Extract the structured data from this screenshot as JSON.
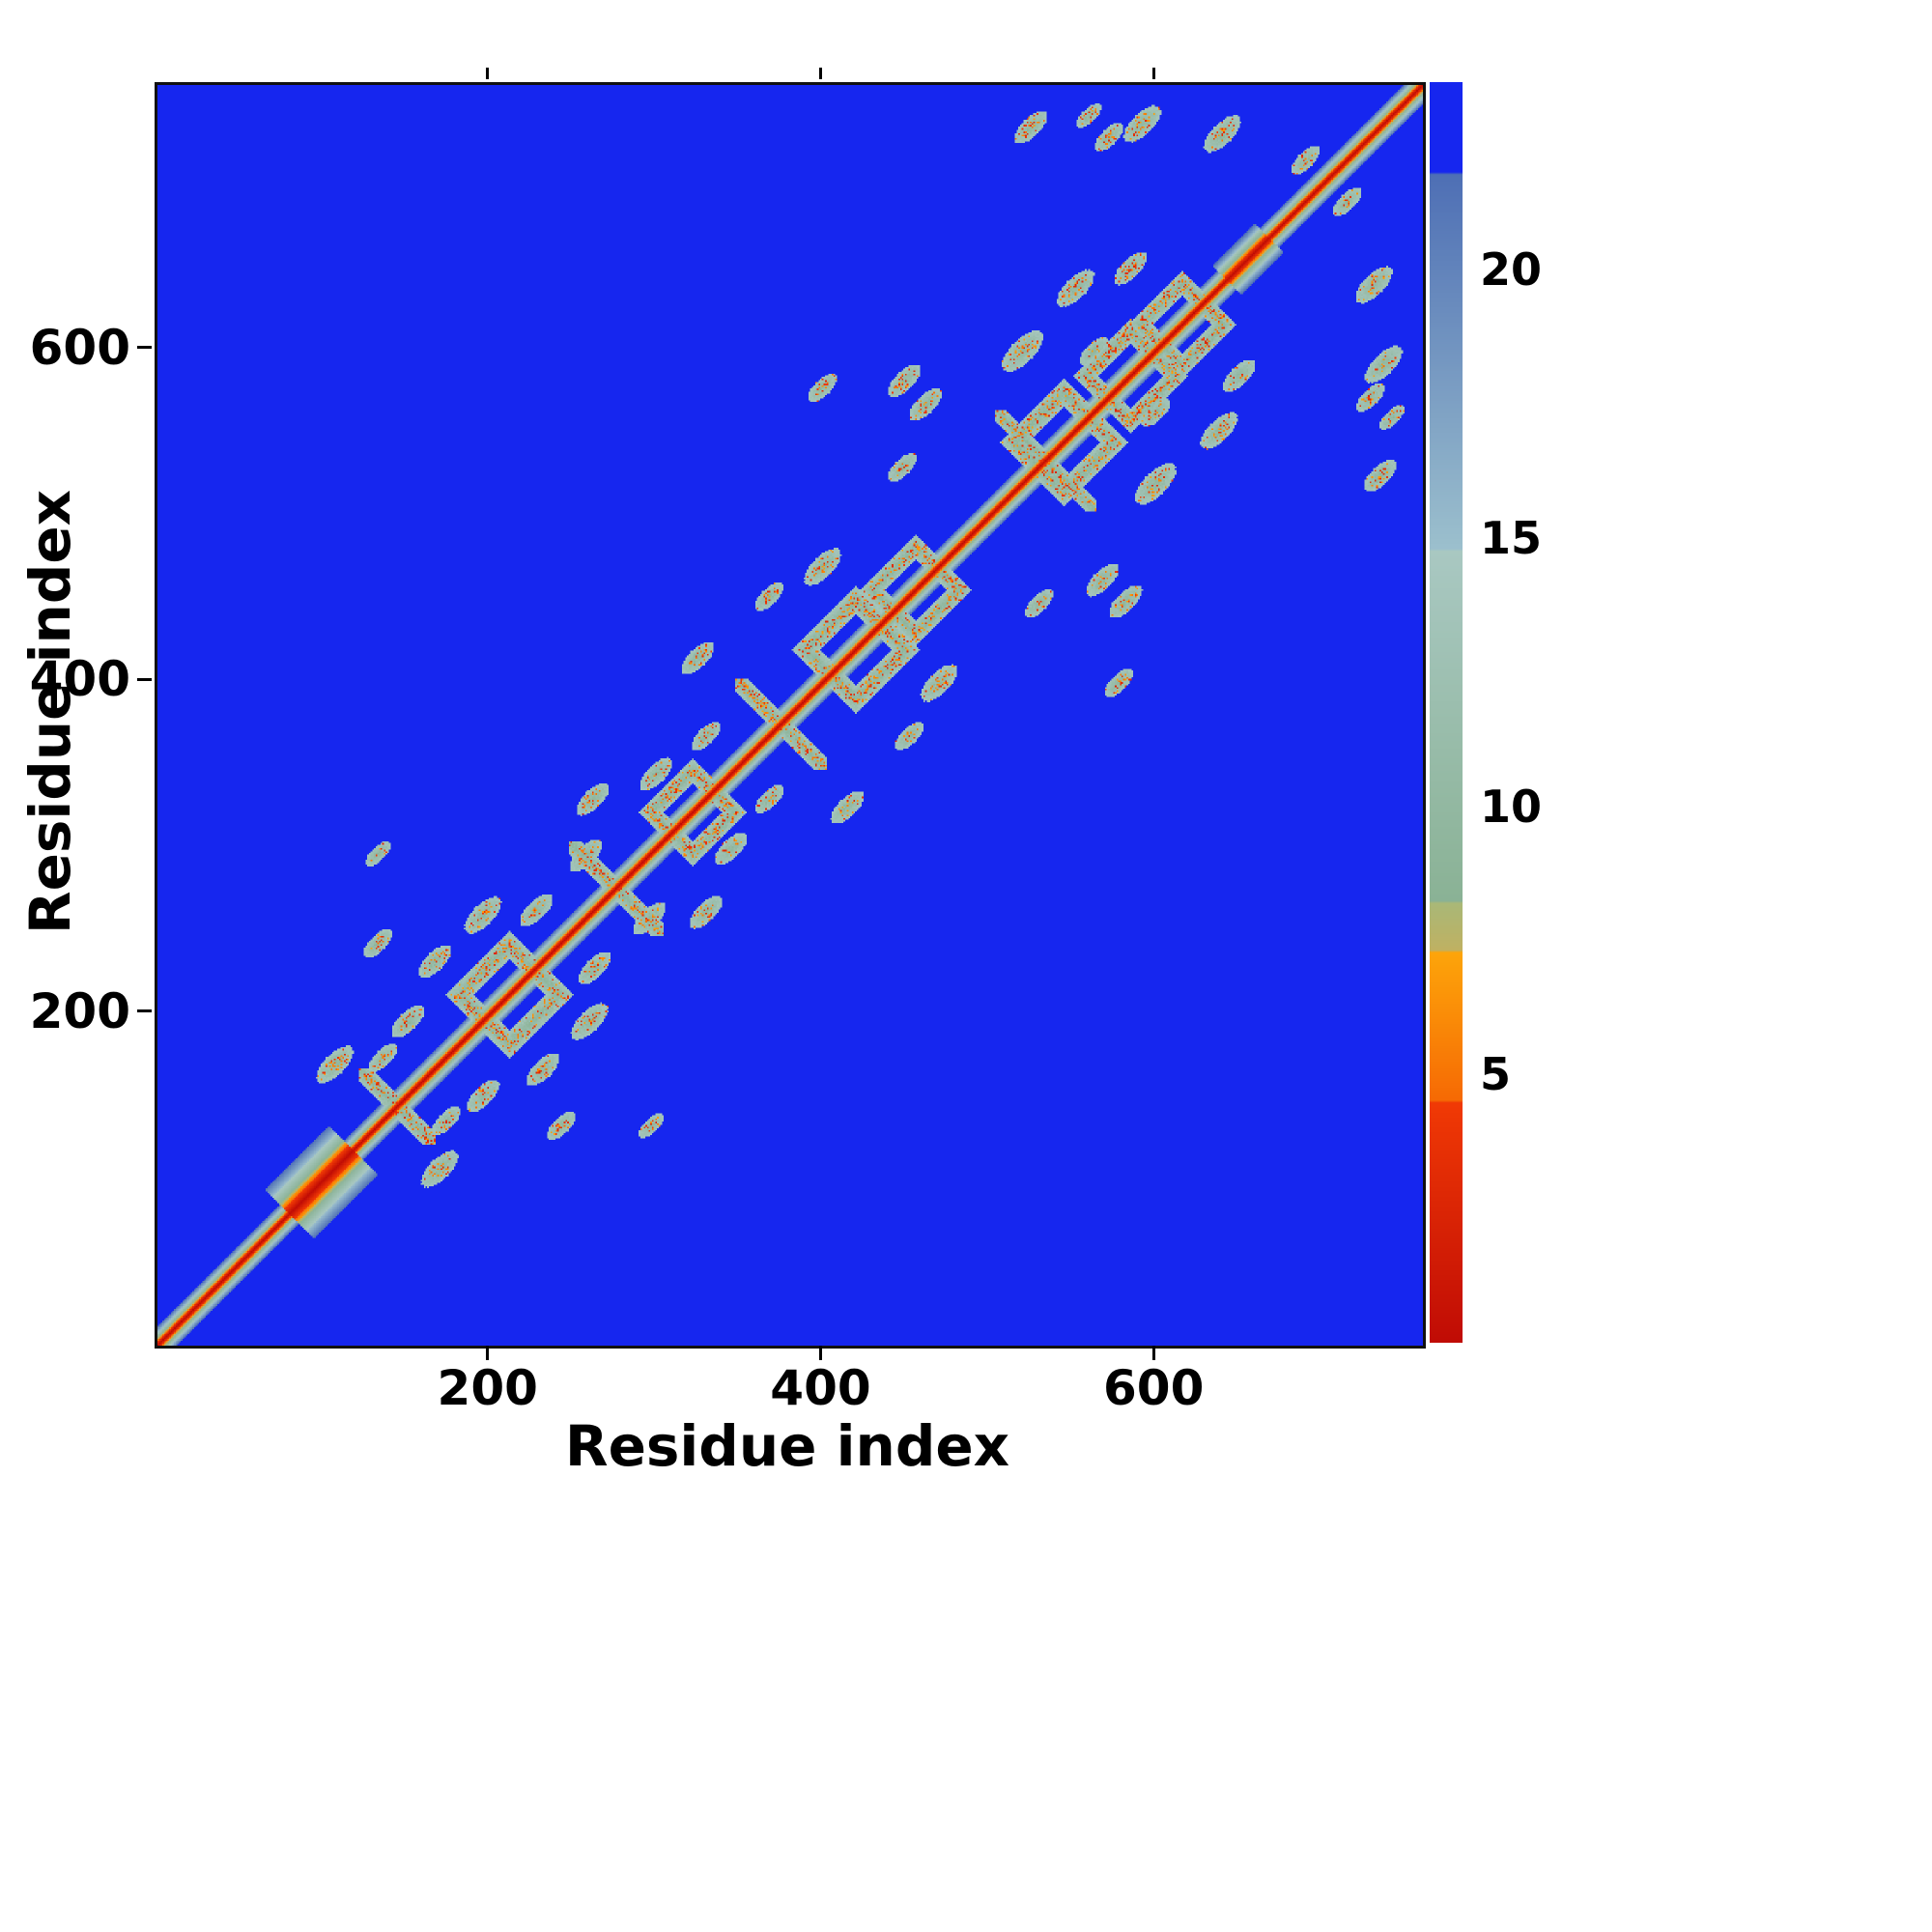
{
  "figure": {
    "xlabel": "Residue index",
    "ylabel": "Residue index"
  },
  "chart_data": {
    "type": "heatmap",
    "title": "",
    "xlabel": "Residue index",
    "ylabel": "Residue index",
    "x_range": [
      1,
      760
    ],
    "y_range": [
      1,
      760
    ],
    "x_ticks": [
      "200",
      "400",
      "600"
    ],
    "y_ticks": [
      "200",
      "400",
      "600"
    ],
    "x_tick_values": [
      200,
      400,
      600
    ],
    "y_tick_values": [
      200,
      400,
      600
    ],
    "grid": false,
    "legend": "colorbar-right",
    "colorbar": {
      "vmin": 0,
      "vmax": 23.5,
      "tick_values": [
        5,
        10,
        15,
        20
      ],
      "tick_labels": [
        "5",
        "10",
        "15",
        "20"
      ]
    },
    "background_color": "#1626ef",
    "colormap_stops": [
      {
        "upto": 4.5,
        "from": "#c00c05",
        "to": "#f13a05"
      },
      {
        "upto": 7.3,
        "from": "#f66a04",
        "to": "#fda60a"
      },
      {
        "upto": 8.2,
        "from": "#c0b162",
        "to": "#a9b878"
      },
      {
        "upto": 14.8,
        "from": "#8ab295",
        "to": "#a9c8c2"
      },
      {
        "upto": 21.8,
        "from": "#9cc0cd",
        "to": "#4e6fb5"
      },
      {
        "upto": 99,
        "from": "#1626ef",
        "to": "#1626ef"
      }
    ],
    "n": 760,
    "diag_slope": 1.9,
    "features": {
      "diag_wide": [
        {
          "a": 80,
          "b": 118,
          "scale": 2.6
        },
        {
          "a": 643,
          "b": 668,
          "scale": 1.5
        }
      ],
      "anti": [
        {
          "a": 126,
          "b": 163,
          "w": 8
        },
        {
          "a": 252,
          "b": 300,
          "w": 8
        },
        {
          "a": 352,
          "b": 398,
          "w": 8
        },
        {
          "a": 508,
          "b": 560,
          "w": 7
        }
      ],
      "diamonds": [
        {
          "c": 212,
          "r": 30,
          "w": 9
        },
        {
          "c": 322,
          "r": 25,
          "w": 8
        },
        {
          "c": 420,
          "r": 30,
          "w": 9
        },
        {
          "c": 456,
          "r": 26,
          "w": 8
        },
        {
          "c": 545,
          "r": 30,
          "w": 9
        },
        {
          "c": 585,
          "r": 27,
          "w": 8
        },
        {
          "c": 616,
          "r": 25,
          "w": 8
        }
      ],
      "blobs": [
        {
          "x": 107,
          "y": 170,
          "r": 9
        },
        {
          "x": 136,
          "y": 174,
          "r": 7
        },
        {
          "x": 151,
          "y": 196,
          "r": 8
        },
        {
          "x": 133,
          "y": 243,
          "r": 7
        },
        {
          "x": 167,
          "y": 232,
          "r": 8
        },
        {
          "x": 133,
          "y": 297,
          "r": 6
        },
        {
          "x": 196,
          "y": 260,
          "r": 9
        },
        {
          "x": 228,
          "y": 263,
          "r": 8
        },
        {
          "x": 258,
          "y": 296,
          "r": 8
        },
        {
          "x": 262,
          "y": 330,
          "r": 8
        },
        {
          "x": 300,
          "y": 345,
          "r": 8
        },
        {
          "x": 330,
          "y": 368,
          "r": 7
        },
        {
          "x": 325,
          "y": 415,
          "r": 8
        },
        {
          "x": 368,
          "y": 452,
          "r": 7
        },
        {
          "x": 400,
          "y": 470,
          "r": 9
        },
        {
          "x": 400,
          "y": 578,
          "r": 7
        },
        {
          "x": 449,
          "y": 582,
          "r": 8
        },
        {
          "x": 462,
          "y": 568,
          "r": 8
        },
        {
          "x": 448,
          "y": 530,
          "r": 7
        },
        {
          "x": 520,
          "y": 600,
          "r": 10
        },
        {
          "x": 552,
          "y": 638,
          "r": 9
        },
        {
          "x": 585,
          "y": 650,
          "r": 8
        },
        {
          "x": 600,
          "y": 563,
          "r": 7
        },
        {
          "x": 525,
          "y": 735,
          "r": 8
        },
        {
          "x": 560,
          "y": 742,
          "r": 6
        },
        {
          "x": 592,
          "y": 737,
          "r": 9
        },
        {
          "x": 640,
          "y": 731,
          "r": 9
        },
        {
          "x": 572,
          "y": 729,
          "r": 7
        },
        {
          "x": 690,
          "y": 715,
          "r": 7
        }
      ]
    }
  }
}
